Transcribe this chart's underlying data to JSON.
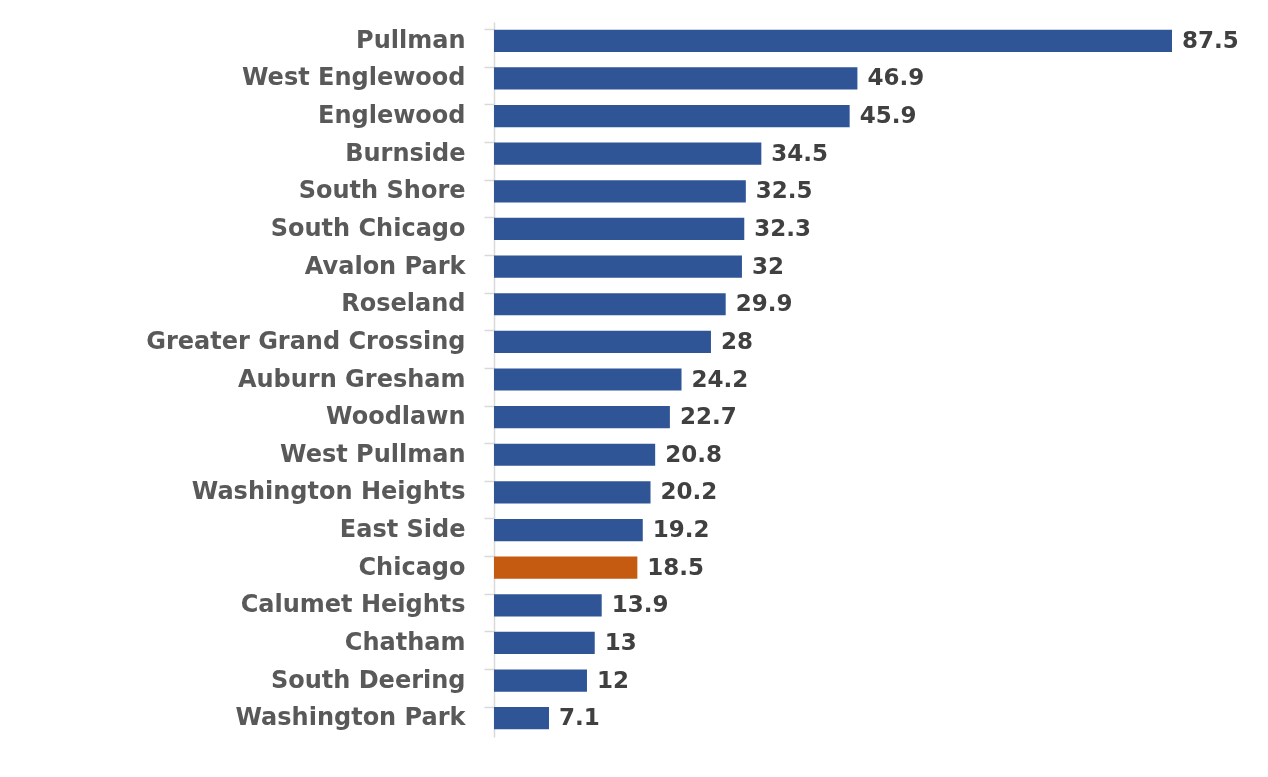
{
  "chart_data": {
    "type": "bar",
    "orientation": "horizontal",
    "tick_labels": "y",
    "data_labels": true,
    "categories": [
      "Pullman",
      "West Englewood",
      "Englewood",
      "Burnside",
      "South Shore",
      "South Chicago",
      "Avalon Park",
      "Roseland",
      "Greater Grand Crossing",
      "Auburn Gresham",
      "Woodlawn",
      "West Pullman",
      "Washington Heights",
      "East Side",
      "Chicago",
      "Calumet Heights",
      "Chatham",
      "South Deering",
      "Washington Park"
    ],
    "values": [
      87.5,
      46.9,
      45.9,
      34.5,
      32.5,
      32.3,
      32,
      29.9,
      28,
      24.2,
      22.7,
      20.8,
      20.2,
      19.2,
      18.5,
      13.9,
      13,
      12,
      7.1
    ],
    "colors": [
      "#2f5597",
      "#2f5597",
      "#2f5597",
      "#2f5597",
      "#2f5597",
      "#2f5597",
      "#2f5597",
      "#2f5597",
      "#2f5597",
      "#2f5597",
      "#2f5597",
      "#2f5597",
      "#2f5597",
      "#2f5597",
      "#c55a11",
      "#2f5597",
      "#2f5597",
      "#2f5597",
      "#2f5597"
    ]
  }
}
